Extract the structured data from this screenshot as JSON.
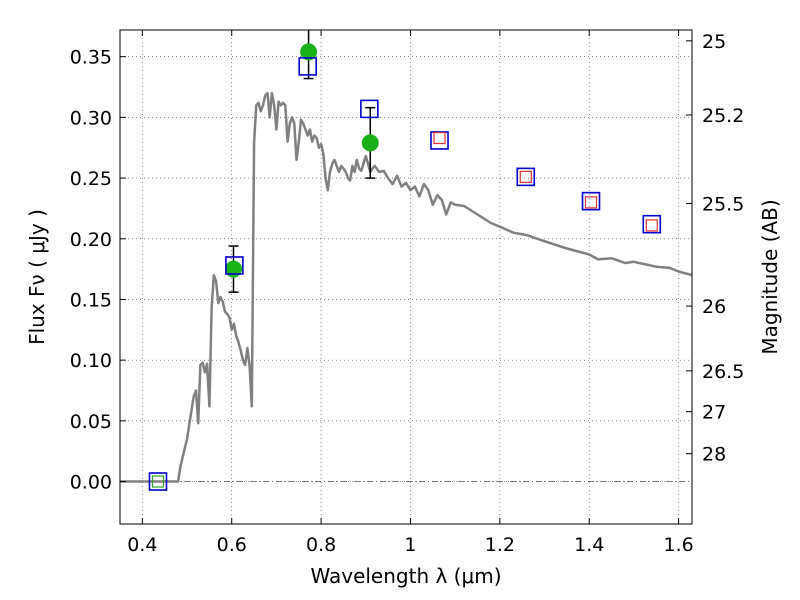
{
  "chart_data": {
    "type": "scatter",
    "title": "",
    "xlabel": "Wavelength  λ (μm)",
    "ylabel": "Flux  Fν  ( μJy )",
    "y2label": "Magnitude (AB)",
    "xlim": [
      0.35,
      1.63
    ],
    "ylim": [
      -0.035,
      0.372
    ],
    "grid": true,
    "x_ticks": [
      0.4,
      0.6,
      0.8,
      1.0,
      1.2,
      1.4,
      1.6
    ],
    "x_tick_labels": [
      "0.4",
      "0.6",
      "0.8",
      "1",
      "1.2",
      "1.4",
      "1.6"
    ],
    "y_ticks": [
      0.0,
      0.05,
      0.1,
      0.15,
      0.2,
      0.25,
      0.3,
      0.35
    ],
    "y_tick_labels": [
      "0.00",
      "0.05",
      "0.10",
      "0.15",
      "0.20",
      "0.25",
      "0.30",
      "0.35"
    ],
    "mag_ticks": [
      25,
      25.2,
      25.5,
      26,
      26.5,
      27,
      28
    ],
    "mag_tick_labels": [
      "25",
      "25.2",
      "25.5",
      "26",
      "26.5",
      "27",
      "28"
    ],
    "series": [
      {
        "type": "line",
        "color": "#808080",
        "x": [
          0.35,
          0.48,
          0.485,
          0.5,
          0.515,
          0.52,
          0.525,
          0.53,
          0.535,
          0.54,
          0.545,
          0.55,
          0.555,
          0.56,
          0.565,
          0.57,
          0.575,
          0.58,
          0.585,
          0.59,
          0.595,
          0.6,
          0.605,
          0.61,
          0.615,
          0.62,
          0.625,
          0.63,
          0.635,
          0.64,
          0.645,
          0.65,
          0.655,
          0.66,
          0.665,
          0.67,
          0.675,
          0.68,
          0.685,
          0.69,
          0.695,
          0.7,
          0.705,
          0.71,
          0.715,
          0.72,
          0.725,
          0.73,
          0.735,
          0.74,
          0.745,
          0.75,
          0.755,
          0.76,
          0.765,
          0.77,
          0.775,
          0.78,
          0.785,
          0.79,
          0.795,
          0.8,
          0.805,
          0.81,
          0.815,
          0.82,
          0.825,
          0.83,
          0.835,
          0.84,
          0.845,
          0.85,
          0.855,
          0.86,
          0.865,
          0.87,
          0.875,
          0.88,
          0.885,
          0.89,
          0.895,
          0.9,
          0.905,
          0.91,
          0.915,
          0.92,
          0.93,
          0.94,
          0.95,
          0.96,
          0.97,
          0.98,
          0.99,
          1.0,
          1.01,
          1.02,
          1.03,
          1.04,
          1.05,
          1.06,
          1.07,
          1.08,
          1.09,
          1.1,
          1.12,
          1.15,
          1.18,
          1.2,
          1.23,
          1.26,
          1.3,
          1.35,
          1.4,
          1.42,
          1.45,
          1.48,
          1.5,
          1.55,
          1.58,
          1.6,
          1.63
        ],
        "y": [
          0.0,
          0.0,
          0.012,
          0.035,
          0.07,
          0.075,
          0.048,
          0.096,
          0.098,
          0.09,
          0.097,
          0.062,
          0.142,
          0.17,
          0.165,
          0.147,
          0.152,
          0.148,
          0.14,
          0.138,
          0.135,
          0.125,
          0.13,
          0.12,
          0.115,
          0.108,
          0.1,
          0.096,
          0.11,
          0.095,
          0.062,
          0.28,
          0.31,
          0.312,
          0.305,
          0.31,
          0.318,
          0.32,
          0.3,
          0.32,
          0.31,
          0.29,
          0.313,
          0.31,
          0.312,
          0.31,
          0.28,
          0.295,
          0.3,
          0.295,
          0.265,
          0.28,
          0.298,
          0.295,
          0.29,
          0.285,
          0.29,
          0.28,
          0.285,
          0.283,
          0.275,
          0.278,
          0.27,
          0.25,
          0.24,
          0.255,
          0.262,
          0.265,
          0.26,
          0.255,
          0.26,
          0.258,
          0.255,
          0.25,
          0.248,
          0.26,
          0.255,
          0.265,
          0.258,
          0.256,
          0.262,
          0.268,
          0.262,
          0.255,
          0.258,
          0.26,
          0.255,
          0.256,
          0.25,
          0.245,
          0.252,
          0.243,
          0.246,
          0.24,
          0.243,
          0.235,
          0.245,
          0.24,
          0.228,
          0.236,
          0.232,
          0.22,
          0.23,
          0.228,
          0.227,
          0.22,
          0.213,
          0.21,
          0.205,
          0.203,
          0.198,
          0.192,
          0.187,
          0.183,
          0.184,
          0.18,
          0.181,
          0.177,
          0.176,
          0.173,
          0.17
        ]
      },
      {
        "type": "scatter",
        "marker": "circle",
        "color": "#1ab01a",
        "x": [
          0.604,
          0.772,
          0.91
        ],
        "y": [
          0.175,
          0.354,
          0.279
        ],
        "yerr": [
          0.019,
          0.022,
          0.029
        ]
      },
      {
        "type": "scatter",
        "marker": "square-open",
        "color": "#0000cc",
        "x": [
          0.435,
          0.606,
          0.77,
          0.908,
          1.065,
          1.258,
          1.404,
          1.54
        ],
        "y": [
          0.0,
          0.178,
          0.342,
          0.307,
          0.281,
          0.251,
          0.231,
          0.212
        ]
      },
      {
        "type": "scatter",
        "marker": "square-open-small",
        "color": "#e03030",
        "x": [
          1.065,
          1.258,
          1.404,
          1.54
        ],
        "y": [
          0.283,
          0.251,
          0.23,
          0.211
        ]
      },
      {
        "type": "scatter",
        "marker": "square-open-small",
        "color": "#2ca02c",
        "x": [
          0.435
        ],
        "y": [
          0.0
        ]
      }
    ]
  }
}
